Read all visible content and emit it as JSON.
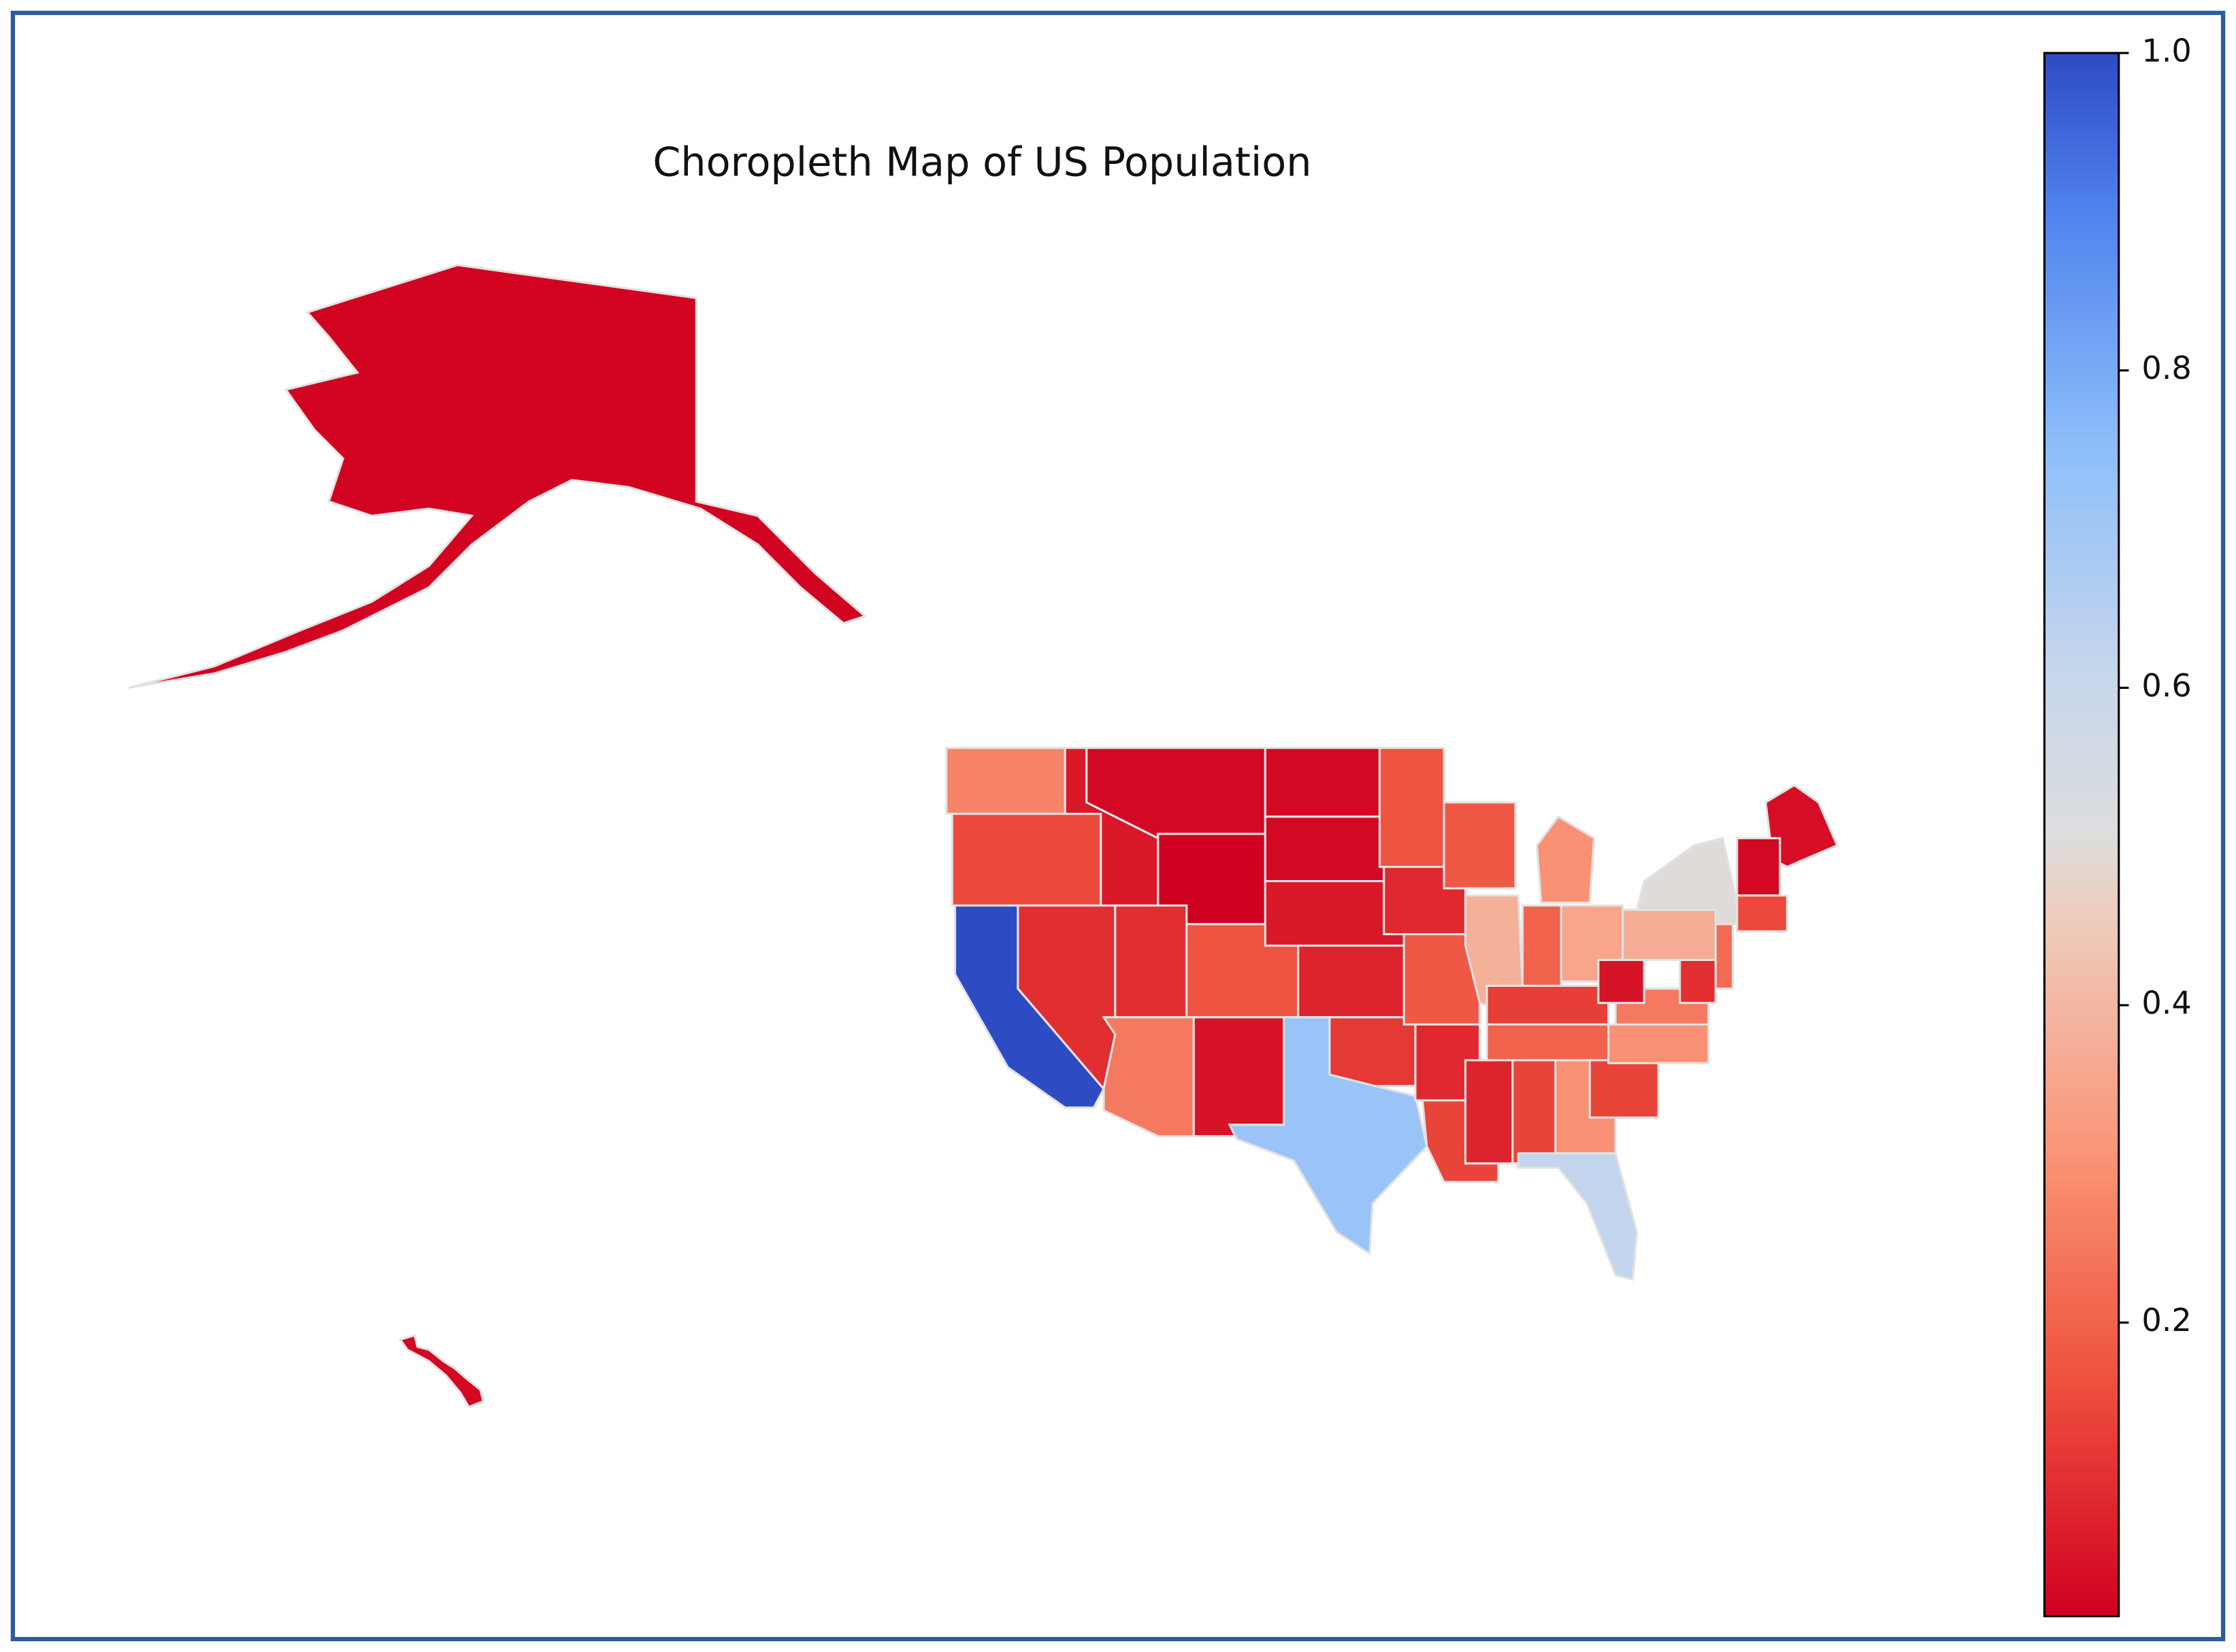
{
  "chart_data": {
    "type": "choropleth",
    "title": "Choropleth Map of US Population",
    "colormap": "coolwarm_r",
    "clim": [
      0.015,
      1.0
    ],
    "cticks": [
      0.2,
      0.4,
      0.6,
      0.8,
      {
        "value": 1,
        "label": "1.0"
      }
    ],
    "values": [
      0.27,
      0.15,
      1.0,
      0.1,
      0.06,
      0.03,
      0.015,
      0.1,
      0.17,
      0.25,
      0.05,
      0.03,
      0.03,
      0.06,
      0.08,
      0.12,
      0.72,
      0.17,
      0.09,
      0.18,
      0.09,
      0.14,
      0.18,
      0.38,
      0.3,
      0.2,
      0.35,
      0.13,
      0.2,
      0.08,
      0.14,
      0.3,
      0.62,
      0.14,
      0.3,
      0.25,
      0.05,
      0.37,
      0.5,
      0.04,
      0.03,
      0.15,
      0.22,
      0.1,
      0.02,
      0.03
    ]
  }
}
